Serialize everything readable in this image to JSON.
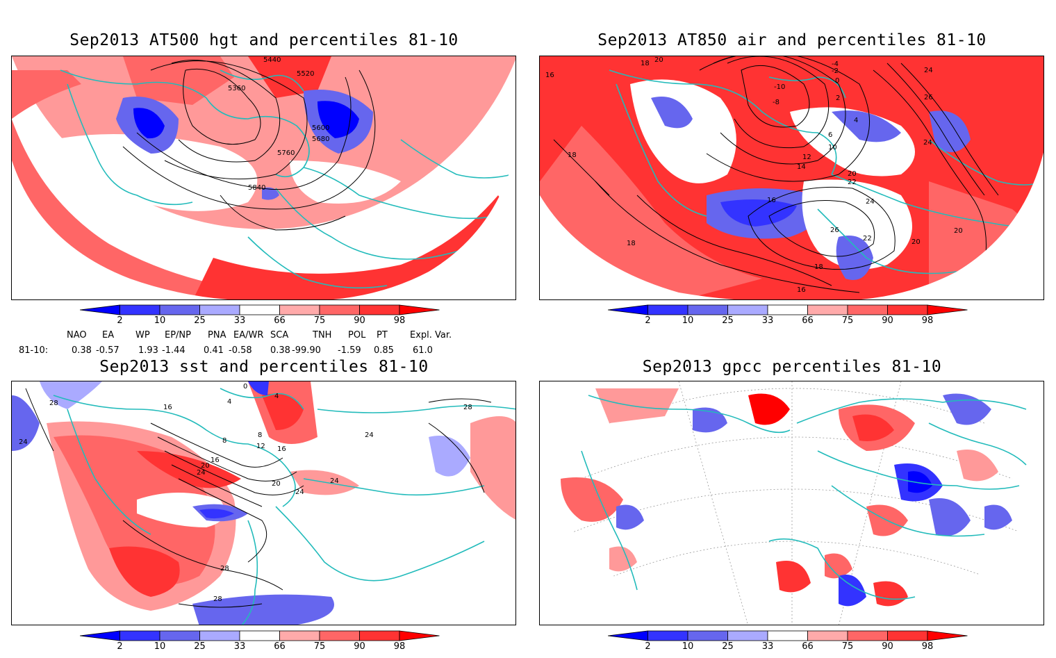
{
  "panels": [
    {
      "title": "Sep2013 AT500 hgt and percentiles 81-10",
      "contour_labels": [
        "5440",
        "5520",
        "5360",
        "5600",
        "5680",
        "5760",
        "5840"
      ]
    },
    {
      "title": "Sep2013 AT850 air and percentiles 81-10",
      "contour_labels": [
        "20",
        "18",
        "16",
        "18",
        "18",
        "-4",
        "-2",
        "0",
        "-10",
        "-8",
        "2",
        "4",
        "6",
        "10",
        "12",
        "14",
        "16",
        "20",
        "22",
        "24",
        "26",
        "24",
        "28",
        "24",
        "26",
        "18",
        "22",
        "20",
        "20",
        "16",
        "18"
      ]
    },
    {
      "title": "Sep2013 sst and percentiles 81-10",
      "contour_labels": [
        "28",
        "24",
        "0",
        "4",
        "16",
        "4",
        "8",
        "8",
        "12",
        "16",
        "20",
        "24",
        "16",
        "20",
        "24",
        "24",
        "28",
        "28",
        "28",
        "24"
      ]
    },
    {
      "title": "Sep2013 gpcc percentiles 81-10",
      "contour_labels": []
    }
  ],
  "colorbar": {
    "labels": [
      "2",
      "10",
      "25",
      "33",
      "66",
      "75",
      "90",
      "98"
    ],
    "colors": [
      "#0000ff",
      "#3333ff",
      "#6666ee",
      "#aaaaff",
      "#ffffff",
      "#ffaaaa",
      "#ff6666",
      "#ff3333",
      "#ff0000"
    ]
  },
  "indices": {
    "names": [
      "NAO",
      "EA",
      "WP",
      "EP/NP",
      "PNA",
      "EA/WR",
      "SCA",
      "TNH",
      "POL",
      "PT",
      "Expl. Var."
    ],
    "row_label": "81-10:",
    "values": [
      "0.38",
      "-0.57",
      "1.93",
      "-1.44",
      "0.41",
      "-0.58",
      "0.38",
      "-99.90",
      "-1.59",
      "0.85",
      "61.0"
    ]
  },
  "map_colors": {
    "land_outline": "#22bbbb",
    "contour": "#000000",
    "grid": "#999999"
  }
}
